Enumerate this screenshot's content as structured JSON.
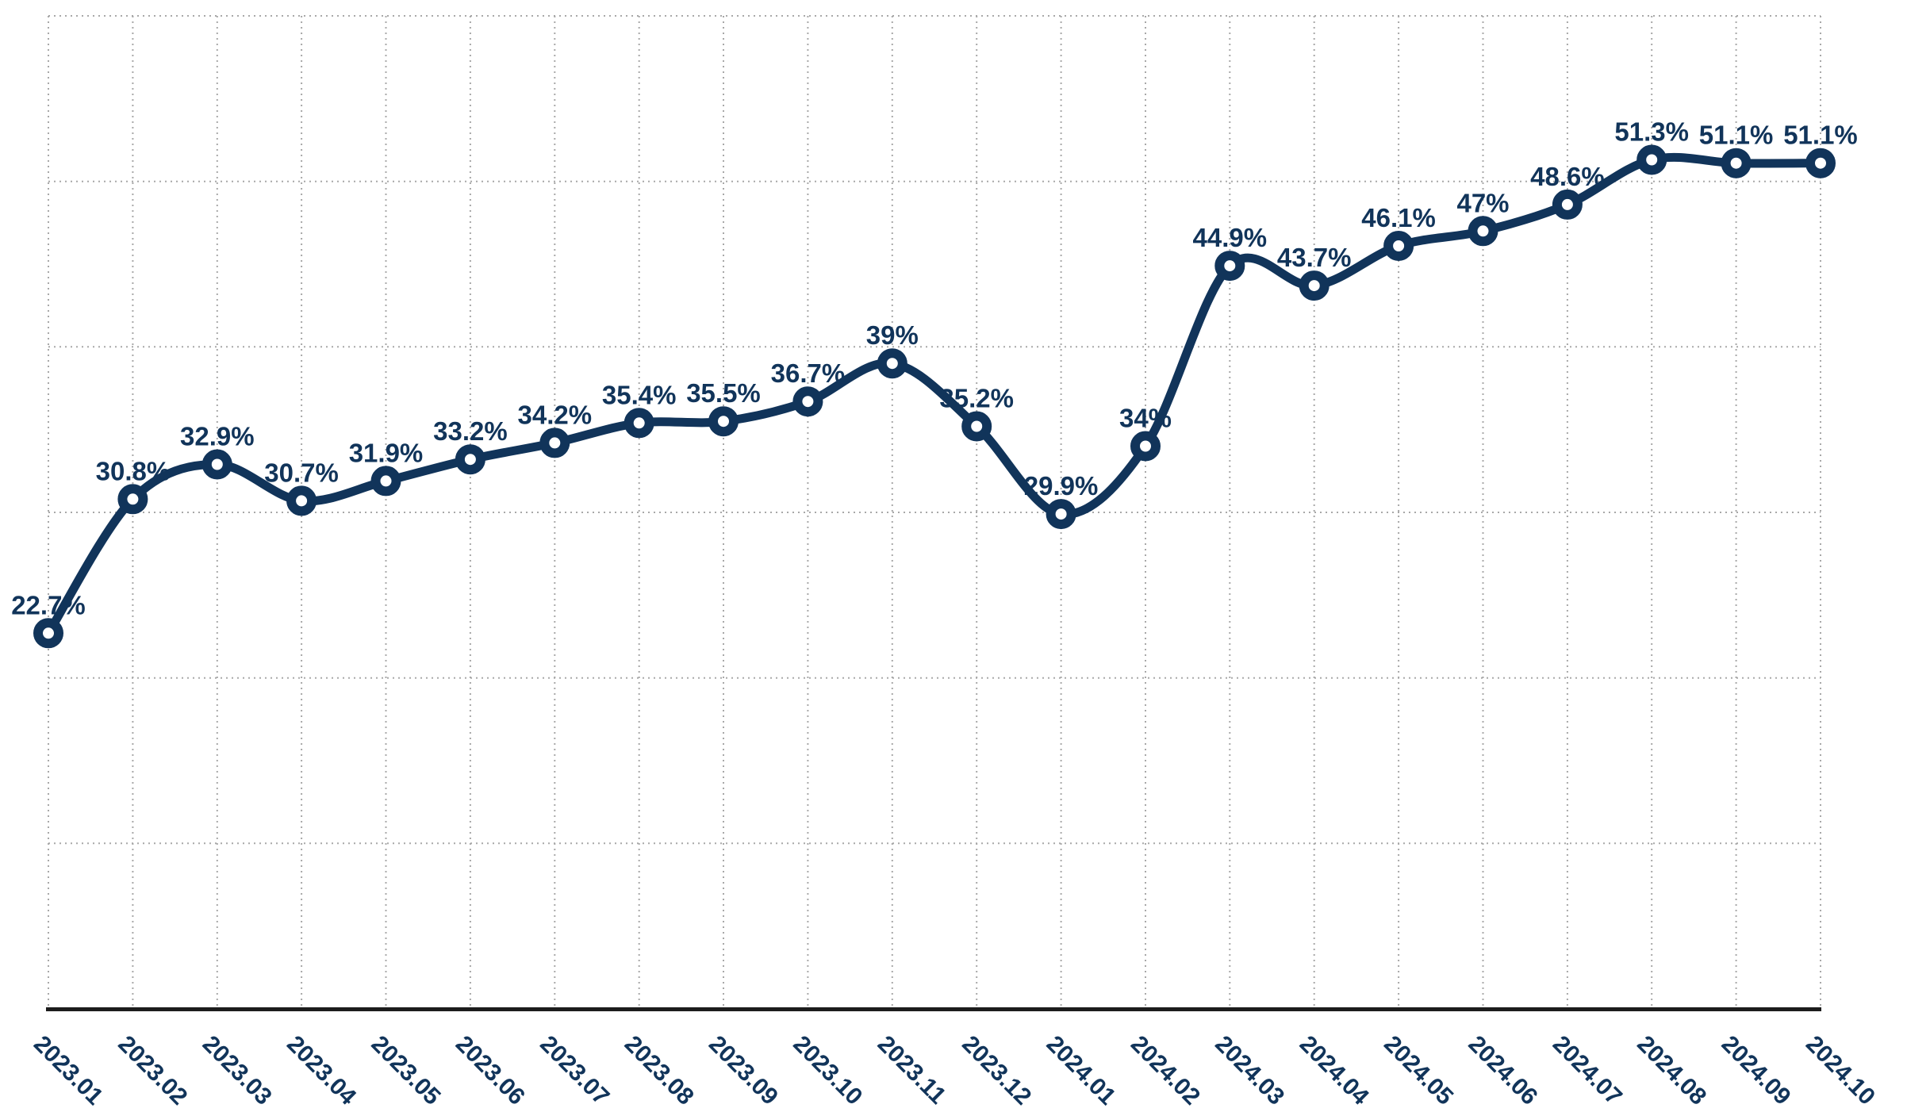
{
  "chart_data": {
    "type": "line",
    "title": "",
    "xlabel": "",
    "ylabel": "",
    "categories": [
      "2023.01",
      "2023.02",
      "2023.03",
      "2023.04",
      "2023.05",
      "2023.06",
      "2023.07",
      "2023.08",
      "2023.09",
      "2023.10",
      "2023.11",
      "2023.12",
      "2024.01",
      "2024.02",
      "2024.03",
      "2024.04",
      "2024.05",
      "2024.06",
      "2024.07",
      "2024.08",
      "2024.09",
      "2024.10"
    ],
    "values": [
      22.7,
      30.8,
      32.9,
      30.7,
      31.9,
      33.2,
      34.2,
      35.4,
      35.5,
      36.7,
      39.0,
      35.2,
      29.9,
      34.0,
      44.9,
      43.7,
      46.1,
      47.0,
      48.6,
      51.3,
      51.1,
      51.1
    ],
    "point_labels": [
      "22.7%",
      "30.8%",
      "32.9%",
      "30.7%",
      "31.9%",
      "33.2%",
      "34.2%",
      "35.4%",
      "35.5%",
      "36.7%",
      "39%",
      "35.2%",
      "29.9%",
      "34%",
      "44.9%",
      "43.7%",
      "46.1%",
      "47%",
      "48.6%",
      "51.3%",
      "51.1%",
      "51.1%"
    ],
    "ylim": [
      0,
      60
    ],
    "y_gridline_step": 10,
    "grid": "dotted",
    "legend": "none",
    "line_smoothing": true,
    "marker": "open-circle",
    "colors": {
      "line": "#11345a",
      "marker_fill": "#ffffff",
      "label_text": "#11345a",
      "tick_text": "#11345a",
      "grid": "#a8a8a8",
      "axis": "#1c1c1c",
      "background": "#ffffff"
    }
  }
}
